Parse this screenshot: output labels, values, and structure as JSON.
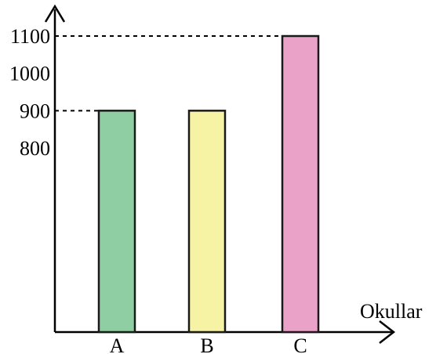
{
  "chart_data": {
    "type": "bar",
    "categories": [
      "A",
      "B",
      "C"
    ],
    "values": [
      900,
      900,
      1100
    ],
    "colors": [
      "#8fcea2",
      "#f6f3a4",
      "#eba2c8"
    ],
    "y_ticks": [
      800,
      900,
      1000,
      1100
    ],
    "y_tick_labels": [
      "800",
      "900",
      "1000",
      "1100"
    ],
    "dashed_reference_values": [
      900,
      1100
    ],
    "xlabel": "Okullar",
    "ylabel": "",
    "title": "",
    "y_axis_broken": true,
    "grid": false
  }
}
